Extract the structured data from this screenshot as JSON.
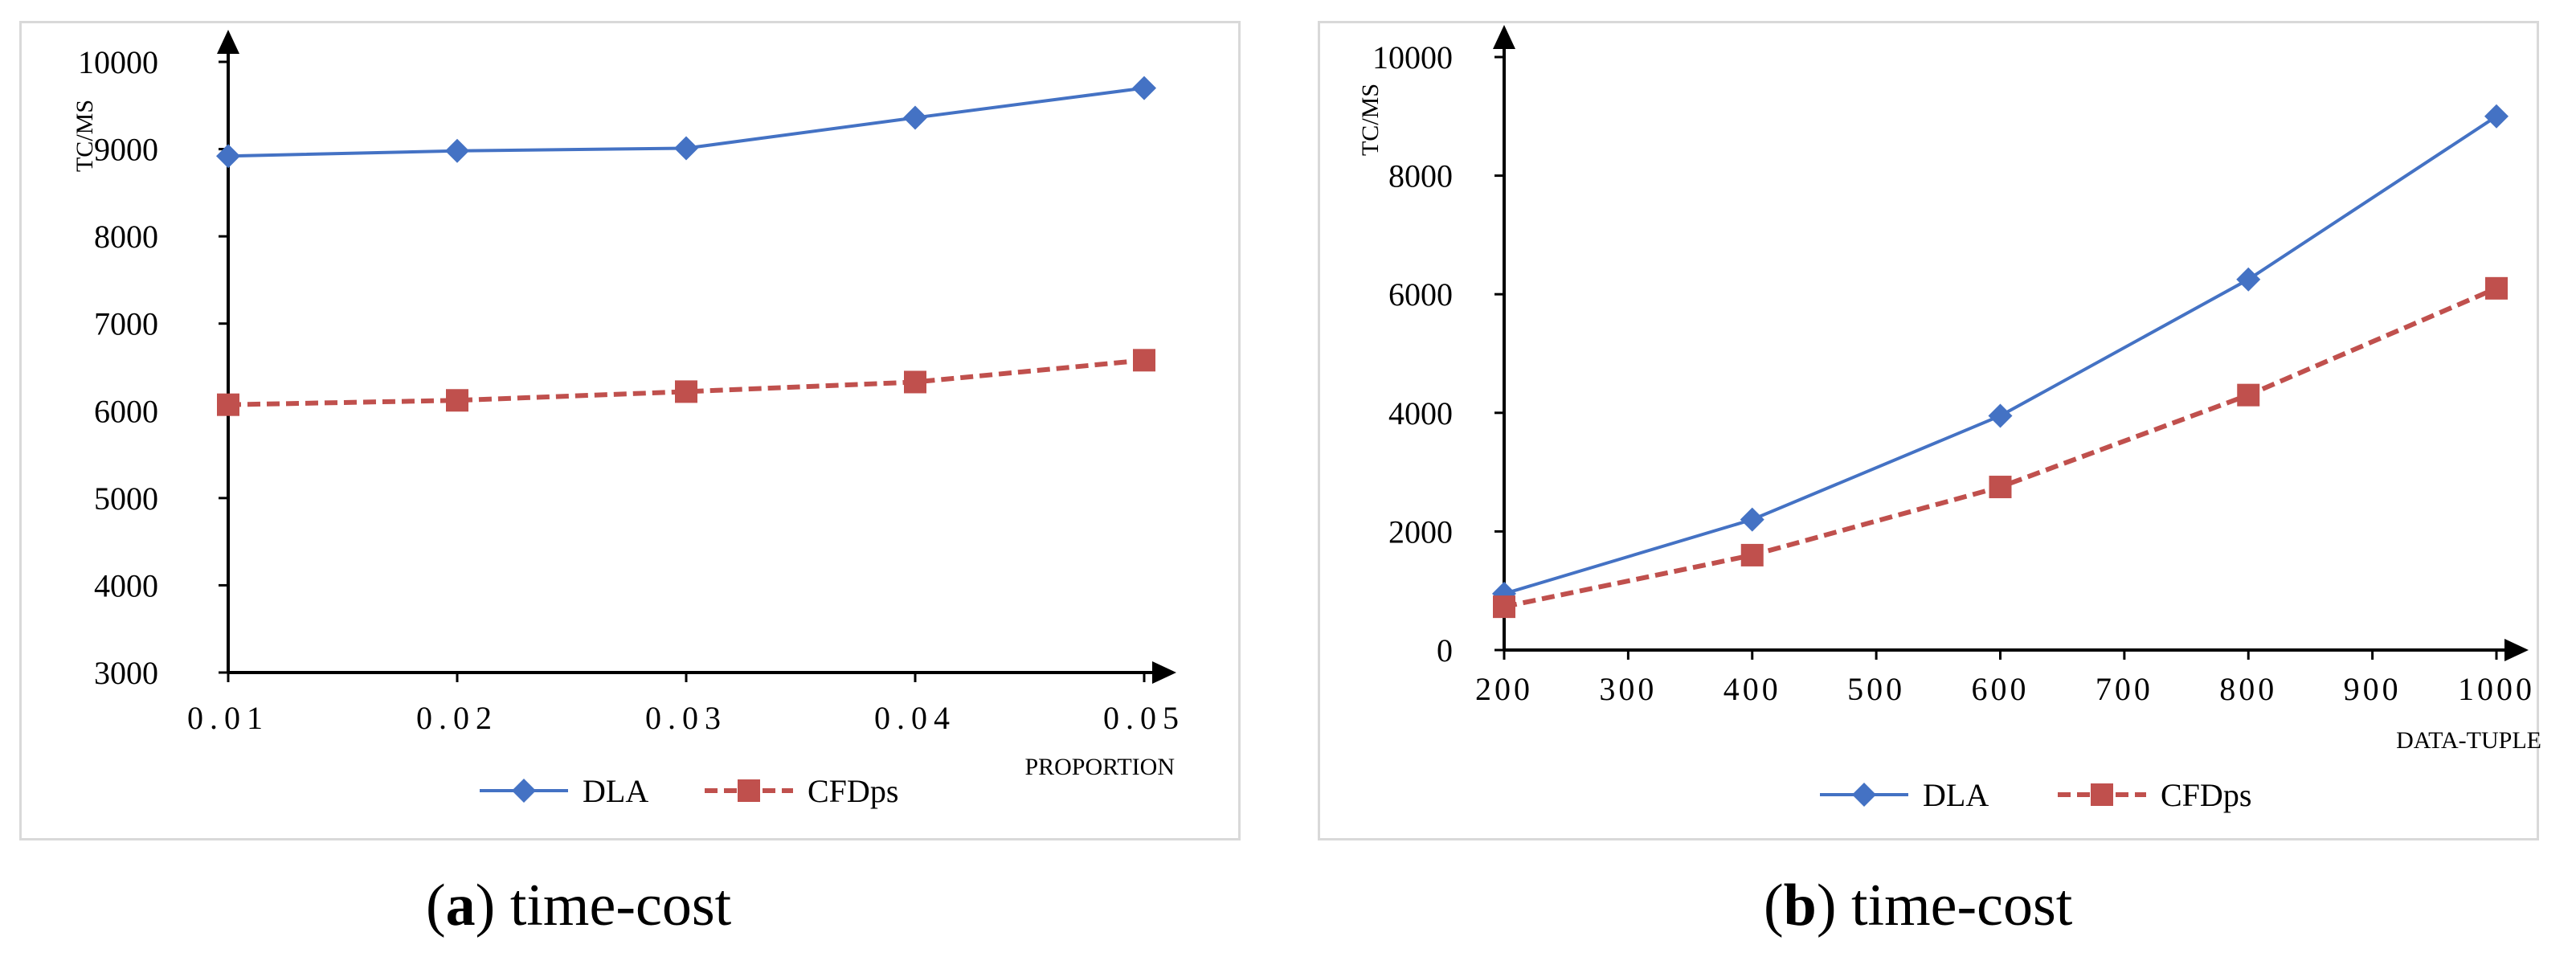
{
  "chart_data": [
    {
      "type": "line",
      "title": "",
      "xlabel": "PROPORTION",
      "ylabel": "TC/MS",
      "categories": [
        "0.01",
        "0.02",
        "0.03",
        "0.04",
        "0.05"
      ],
      "x": [
        0.01,
        0.02,
        0.03,
        0.04,
        0.05
      ],
      "xlim": [
        0.01,
        0.05
      ],
      "ylim": [
        3000,
        10000
      ],
      "yticks": [
        "3000",
        "4000",
        "5000",
        "6000",
        "7000",
        "8000",
        "9000",
        "10000"
      ],
      "xticks": [
        "0.01",
        "0.02",
        "0.03",
        "0.04",
        "0.05"
      ],
      "legend": "bottom",
      "series": [
        {
          "name": "DLA",
          "values": [
            8920,
            8980,
            9010,
            9360,
            9700
          ],
          "color": "#4472C4",
          "marker": "diamond",
          "dash": "solid"
        },
        {
          "name": "CFDps",
          "values": [
            6070,
            6120,
            6220,
            6330,
            6580
          ],
          "color": "#C0504D",
          "marker": "square",
          "dash": "dashed"
        }
      ]
    },
    {
      "type": "line",
      "title": "",
      "xlabel": "DATA-TUPLE",
      "ylabel": "TC/MS",
      "x": [
        200,
        400,
        600,
        800,
        1000
      ],
      "xlim": [
        200,
        1000
      ],
      "ylim": [
        0,
        10000
      ],
      "yticks": [
        "0",
        "2000",
        "4000",
        "6000",
        "8000",
        "10000"
      ],
      "xticks": [
        "200",
        "300",
        "400",
        "500",
        "600",
        "700",
        "800",
        "900",
        "1000"
      ],
      "legend": "bottom",
      "series": [
        {
          "name": "DLA",
          "values": [
            950,
            2200,
            3950,
            6250,
            9000
          ],
          "color": "#4472C4",
          "marker": "diamond",
          "dash": "solid"
        },
        {
          "name": "CFDps",
          "values": [
            730,
            1600,
            2750,
            4300,
            6100
          ],
          "color": "#C0504D",
          "marker": "square",
          "dash": "dashed"
        }
      ]
    }
  ],
  "captions": [
    {
      "label": "(a)",
      "text": "time-cost"
    },
    {
      "label": "(b)",
      "text": "time-cost"
    }
  ]
}
